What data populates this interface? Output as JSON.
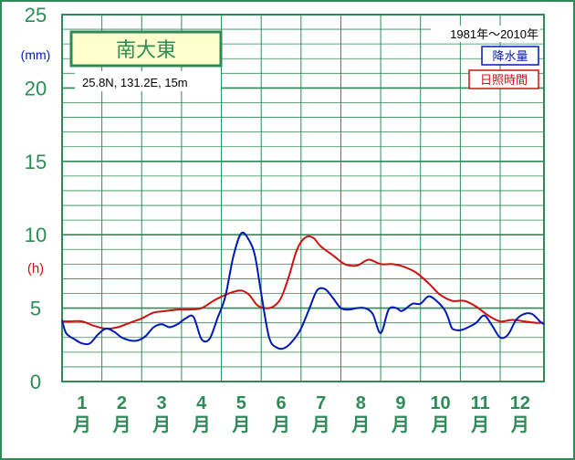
{
  "chart_data": {
    "type": "line",
    "station_name": "南大東",
    "location": "25.8N,  131.2E,  15m",
    "period": "1981年〜2010年",
    "y_unit_left": "(mm)",
    "y_unit_right": "(h)",
    "y_ticks": [
      "0",
      "5",
      "10",
      "15",
      "20",
      "25"
    ],
    "ylim": [
      0,
      25
    ],
    "months": [
      "1",
      "2",
      "3",
      "4",
      "5",
      "6",
      "7",
      "8",
      "9",
      "10",
      "11",
      "12"
    ],
    "month_suffix": "月",
    "xlim": [
      0.5,
      12.6
    ],
    "grid": true,
    "legend_position": "top-right",
    "series": [
      {
        "name": "降水量",
        "color": "#0018b4",
        "x": [
          0.5,
          0.6,
          0.8,
          1.0,
          1.2,
          1.4,
          1.6,
          1.8,
          2.0,
          2.2,
          2.4,
          2.6,
          2.8,
          3.0,
          3.2,
          3.4,
          3.6,
          3.8,
          4.0,
          4.2,
          4.4,
          4.6,
          4.8,
          5.0,
          5.2,
          5.35,
          5.5,
          5.7,
          5.9,
          6.1,
          6.3,
          6.5,
          6.7,
          6.9,
          7.1,
          7.3,
          7.5,
          7.7,
          7.9,
          8.1,
          8.3,
          8.5,
          8.7,
          8.9,
          9.0,
          9.1,
          9.3,
          9.5,
          9.7,
          9.9,
          10.1,
          10.2,
          10.3,
          10.5,
          10.7,
          10.9,
          11.1,
          11.3,
          11.5,
          11.7,
          11.9,
          12.1,
          12.3,
          12.5,
          12.6
        ],
        "y": [
          4.2,
          3.3,
          2.9,
          2.6,
          2.6,
          3.2,
          3.6,
          3.4,
          3.0,
          2.8,
          2.8,
          3.1,
          3.7,
          3.9,
          3.7,
          3.9,
          4.3,
          4.4,
          2.9,
          2.9,
          4.3,
          5.8,
          8.5,
          10.1,
          9.6,
          8.5,
          6.0,
          3.0,
          2.3,
          2.3,
          2.8,
          3.6,
          4.9,
          6.2,
          6.3,
          5.7,
          5.0,
          4.9,
          5.0,
          5.0,
          4.6,
          3.3,
          4.9,
          5.0,
          4.8,
          4.9,
          5.3,
          5.3,
          5.8,
          5.5,
          4.9,
          4.3,
          3.6,
          3.5,
          3.7,
          4.0,
          4.5,
          3.8,
          3.0,
          3.2,
          4.2,
          4.6,
          4.6,
          4.1,
          3.9
        ]
      },
      {
        "name": "日照時間",
        "color": "#cc1111",
        "x": [
          0.5,
          0.7,
          1.0,
          1.3,
          1.6,
          1.9,
          2.2,
          2.5,
          2.8,
          3.1,
          3.4,
          3.7,
          4.0,
          4.3,
          4.6,
          4.8,
          5.0,
          5.2,
          5.4,
          5.6,
          5.8,
          6.0,
          6.2,
          6.4,
          6.6,
          6.8,
          7.0,
          7.3,
          7.6,
          7.9,
          8.2,
          8.5,
          8.8,
          9.1,
          9.4,
          9.7,
          10.0,
          10.3,
          10.6,
          10.9,
          11.2,
          11.5,
          11.8,
          12.1,
          12.4,
          12.6
        ],
        "y": [
          4.1,
          4.1,
          4.1,
          3.8,
          3.6,
          3.7,
          4.0,
          4.3,
          4.7,
          4.8,
          4.9,
          4.9,
          5.0,
          5.5,
          5.9,
          6.1,
          6.2,
          5.9,
          5.2,
          5.0,
          5.1,
          5.7,
          7.2,
          9.0,
          9.8,
          9.8,
          9.2,
          8.6,
          8.0,
          7.9,
          8.3,
          8.0,
          8.0,
          7.8,
          7.4,
          6.7,
          5.9,
          5.5,
          5.5,
          5.1,
          4.5,
          4.1,
          4.2,
          4.1,
          4.0,
          4.0
        ]
      }
    ]
  }
}
